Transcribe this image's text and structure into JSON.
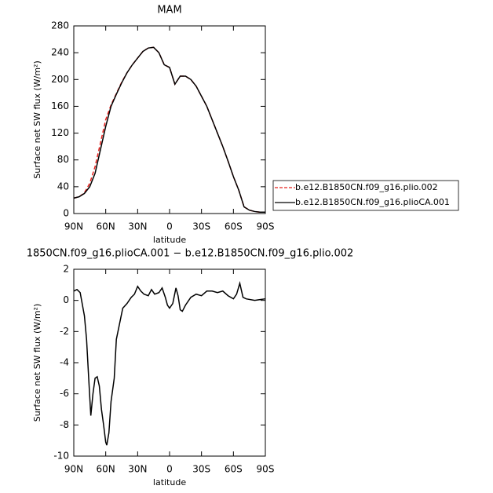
{
  "chart_data": [
    {
      "type": "line",
      "title": "MAM",
      "xlabel": "latitude",
      "ylabel": "Surface net SW flux (W/m²)",
      "x": [
        90,
        85,
        80,
        75,
        70,
        65,
        60,
        55,
        50,
        45,
        40,
        35,
        30,
        25,
        20,
        15,
        10,
        5,
        0,
        -5,
        -10,
        -15,
        -20,
        -25,
        -30,
        -35,
        -40,
        -45,
        -50,
        -55,
        -60,
        -65,
        -70,
        -75,
        -80,
        -85,
        -90
      ],
      "series": [
        {
          "name": "b.e12.B1850CN.f09_g16.plio.002",
          "color": "#e8201c",
          "dashed": true,
          "values": [
            23,
            25,
            31,
            45,
            70,
            105,
            140,
            162,
            179,
            196,
            210,
            222,
            232,
            242,
            247,
            248,
            240,
            222,
            218,
            193,
            205,
            205,
            200,
            190,
            175,
            160,
            140,
            120,
            100,
            78,
            55,
            35,
            10,
            5,
            3,
            2,
            2
          ]
        },
        {
          "name": "b.e12.B1850CN.f09_g16.plioCA.001",
          "color": "#000000",
          "dashed": false,
          "values": [
            23,
            25,
            30,
            40,
            60,
            95,
            130,
            160,
            178,
            195,
            210,
            222,
            232,
            242,
            247,
            248,
            240,
            222,
            218,
            193,
            205,
            205,
            200,
            190,
            175,
            160,
            140,
            120,
            100,
            78,
            55,
            35,
            10,
            5,
            3,
            2,
            2
          ]
        }
      ],
      "xlim": [
        90,
        -90
      ],
      "xticks": [
        {
          "value": 90,
          "label": "90N"
        },
        {
          "value": 60,
          "label": "60N"
        },
        {
          "value": 30,
          "label": "30N"
        },
        0,
        {
          "value": -30,
          "label": "30S"
        },
        {
          "value": -60,
          "label": "60S"
        },
        {
          "value": -90,
          "label": "90S"
        }
      ],
      "ylim": [
        0,
        280
      ],
      "yticks": [
        0,
        40,
        80,
        120,
        160,
        200,
        240,
        280
      ],
      "legend": "outside-right"
    },
    {
      "type": "line",
      "title": "1850CN.f09_g16.plioCA.001 − b.e12.B1850CN.f09_g16.plio.002",
      "xlabel": "latitude",
      "ylabel": "Surface net SW flux (W/m²)",
      "x": [
        90,
        87,
        84,
        80,
        78,
        76,
        74,
        72,
        70,
        68,
        66,
        64,
        62,
        60,
        59,
        57,
        55,
        52,
        50,
        47,
        44,
        40,
        36,
        33,
        30,
        27,
        24,
        20,
        17,
        14,
        10,
        7,
        4,
        2,
        0,
        -3,
        -6,
        -8,
        -10,
        -12,
        -15,
        -20,
        -25,
        -30,
        -35,
        -40,
        -45,
        -50,
        -55,
        -60,
        -63,
        -66,
        -69,
        -72,
        -80,
        -85,
        -90
      ],
      "series": [
        {
          "color": "#000000",
          "dashed": false,
          "values": [
            0.6,
            0.7,
            0.5,
            -1,
            -2.5,
            -5,
            -7.4,
            -6,
            -5,
            -4.9,
            -5.5,
            -7,
            -8,
            -9.1,
            -9.3,
            -8.5,
            -6.5,
            -5,
            -2.5,
            -1.5,
            -0.5,
            -0.2,
            0.2,
            0.4,
            0.9,
            0.6,
            0.4,
            0.3,
            0.7,
            0.4,
            0.5,
            0.8,
            0.2,
            -0.3,
            -0.5,
            -0.2,
            0.8,
            0.3,
            -0.6,
            -0.7,
            -0.3,
            0.2,
            0.4,
            0.3,
            0.6,
            0.6,
            0.5,
            0.6,
            0.3,
            0.1,
            0.4,
            1.1,
            0.2,
            0.1,
            0,
            0.05,
            0.1
          ]
        }
      ],
      "xlim": [
        90,
        -90
      ],
      "xticks": [
        {
          "value": 90,
          "label": "90N"
        },
        {
          "value": 60,
          "label": "60N"
        },
        {
          "value": 30,
          "label": "30N"
        },
        0,
        {
          "value": -30,
          "label": "30S"
        },
        {
          "value": -60,
          "label": "60S"
        },
        {
          "value": -90,
          "label": "90S"
        }
      ],
      "ylim": [
        -10,
        2
      ],
      "yticks": [
        2,
        0,
        -2,
        -4,
        -6,
        -8,
        -10
      ]
    }
  ]
}
